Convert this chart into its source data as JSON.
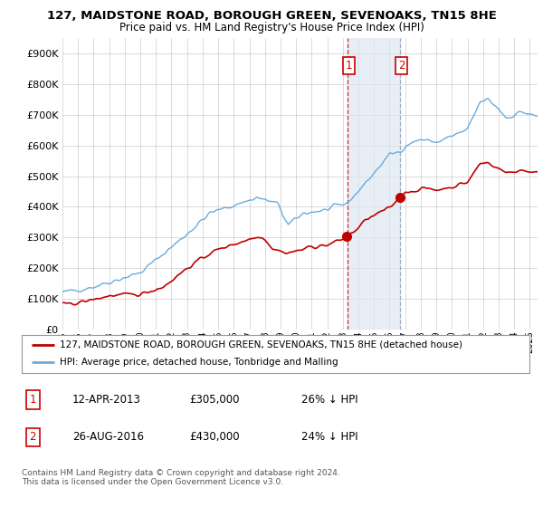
{
  "title": "127, MAIDSTONE ROAD, BOROUGH GREEN, SEVENOAKS, TN15 8HE",
  "subtitle": "Price paid vs. HM Land Registry's House Price Index (HPI)",
  "ylim": [
    0,
    950000
  ],
  "yticks": [
    0,
    100000,
    200000,
    300000,
    400000,
    500000,
    600000,
    700000,
    800000,
    900000
  ],
  "xlim_start": 1995.0,
  "xlim_end": 2025.5,
  "hpi_color": "#6aabdc",
  "price_color": "#c00000",
  "sale1_date": 2013.28,
  "sale1_price": 305000,
  "sale2_date": 2016.65,
  "sale2_price": 430000,
  "legend_line1": "127, MAIDSTONE ROAD, BOROUGH GREEN, SEVENOAKS, TN15 8HE (detached house)",
  "legend_line2": "HPI: Average price, detached house, Tonbridge and Malling",
  "footnote": "Contains HM Land Registry data © Crown copyright and database right 2024.\nThis data is licensed under the Open Government Licence v3.0.",
  "table_rows": [
    {
      "num": "1",
      "date": "12-APR-2013",
      "price": "£305,000",
      "hpi": "26% ↓ HPI"
    },
    {
      "num": "2",
      "date": "26-AUG-2016",
      "price": "£430,000",
      "hpi": "24% ↓ HPI"
    }
  ],
  "background_color": "#ffffff",
  "grid_color": "#cccccc",
  "shade_color": "#dce6f1"
}
